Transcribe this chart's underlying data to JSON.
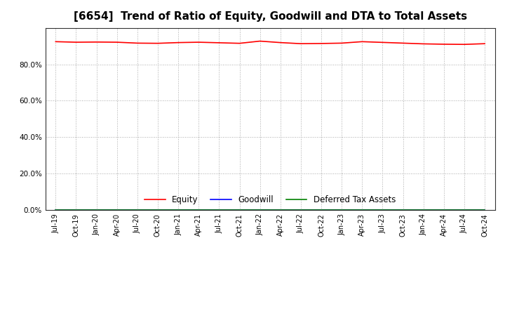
{
  "title": "[6654]  Trend of Ratio of Equity, Goodwill and DTA to Total Assets",
  "x_labels": [
    "Jul-19",
    "Oct-19",
    "Jan-20",
    "Apr-20",
    "Jul-20",
    "Oct-20",
    "Jan-21",
    "Apr-21",
    "Jul-21",
    "Oct-21",
    "Jan-22",
    "Apr-22",
    "Jul-22",
    "Oct-22",
    "Jan-23",
    "Apr-23",
    "Jul-23",
    "Oct-23",
    "Jan-24",
    "Apr-24",
    "Jul-24",
    "Oct-24"
  ],
  "equity": [
    0.924,
    0.921,
    0.922,
    0.921,
    0.916,
    0.915,
    0.919,
    0.921,
    0.918,
    0.915,
    0.927,
    0.919,
    0.913,
    0.914,
    0.916,
    0.924,
    0.92,
    0.916,
    0.912,
    0.91,
    0.909,
    0.913
  ],
  "goodwill": [
    0.0,
    0.0,
    0.0,
    0.0,
    0.0,
    0.0,
    0.0,
    0.0,
    0.0,
    0.0,
    0.0,
    0.0,
    0.0,
    0.0,
    0.0,
    0.0,
    0.0,
    0.0,
    0.0,
    0.0,
    0.0,
    0.0
  ],
  "dta": [
    0.0,
    0.0,
    0.0,
    0.0,
    0.0,
    0.0,
    0.0,
    0.0,
    0.0,
    0.0,
    0.0,
    0.0,
    0.0,
    0.0,
    0.0,
    0.0,
    0.0,
    0.0,
    0.0,
    0.0,
    0.0,
    0.0
  ],
  "equity_color": "#FF0000",
  "goodwill_color": "#0000FF",
  "dta_color": "#008000",
  "ylim": [
    0.0,
    1.0
  ],
  "yticks": [
    0.0,
    0.2,
    0.4,
    0.6,
    0.8
  ],
  "background_color": "#FFFFFF",
  "plot_bg_color": "#FFFFFF",
  "grid_color": "#AAAAAA",
  "title_fontsize": 11,
  "tick_fontsize": 7,
  "legend_labels": [
    "Equity",
    "Goodwill",
    "Deferred Tax Assets"
  ]
}
